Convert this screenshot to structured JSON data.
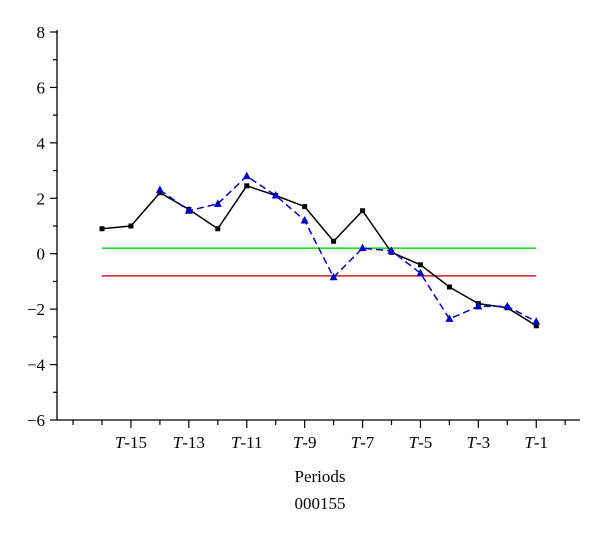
{
  "chart_data": {
    "type": "line",
    "x": [
      "T-16",
      "T-15",
      "T-14",
      "T-13",
      "T-12",
      "T-11",
      "T-10",
      "T-9",
      "T-8",
      "T-7",
      "T-6",
      "T-5",
      "T-4",
      "T-3",
      "T-2",
      "T-1"
    ],
    "x_tick_labels": [
      {
        "prefix": "T",
        "suffix": "-15"
      },
      {
        "prefix": "T",
        "suffix": "-13"
      },
      {
        "prefix": "T",
        "suffix": "-11"
      },
      {
        "prefix": "T",
        "suffix": "-9"
      },
      {
        "prefix": "T",
        "suffix": "-7"
      },
      {
        "prefix": "T",
        "suffix": "-5"
      },
      {
        "prefix": "T",
        "suffix": "-3"
      },
      {
        "prefix": "T",
        "suffix": "-1"
      }
    ],
    "y_tick_labels": [
      "8",
      "6",
      "4",
      "2",
      "0",
      "−2",
      "−4",
      "−6"
    ],
    "ylim": [
      -6,
      8
    ],
    "xlabel": "Periods",
    "subtitle": "000155",
    "grid": false,
    "series": [
      {
        "style": "solid-square",
        "color": "#000000",
        "values": [
          0.9,
          1.0,
          2.2,
          1.6,
          0.9,
          2.45,
          2.1,
          1.7,
          0.45,
          1.55,
          0.05,
          -0.4,
          -1.2,
          -1.8,
          -1.95,
          -2.6
        ]
      },
      {
        "style": "dashed-triangle",
        "color": "#0000cc",
        "values": [
          null,
          null,
          2.3,
          1.55,
          1.8,
          2.8,
          2.1,
          1.2,
          -0.85,
          0.2,
          0.1,
          -0.7,
          -2.35,
          -1.9,
          -1.9,
          -2.45
        ]
      }
    ],
    "reference_lines": [
      {
        "y": 0.2,
        "color": "#22dd22"
      },
      {
        "y": -0.8,
        "color": "#cc2222"
      }
    ]
  }
}
